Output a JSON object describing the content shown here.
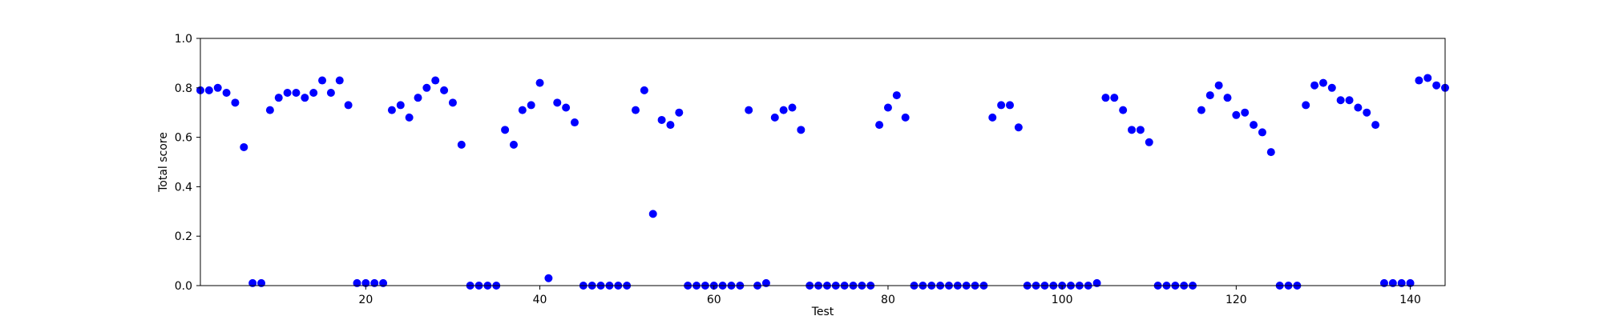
{
  "chart_data": {
    "type": "scatter",
    "title": "",
    "xlabel": "Test",
    "ylabel": "Total score",
    "xlim": [
      1,
      144
    ],
    "ylim": [
      0.0,
      1.0
    ],
    "xticks": [
      20,
      40,
      60,
      80,
      100,
      120,
      140
    ],
    "yticks": [
      0.0,
      0.2,
      0.4,
      0.6,
      0.8,
      1.0
    ],
    "xtick_labels": [
      "20",
      "40",
      "60",
      "80",
      "100",
      "120",
      "140"
    ],
    "ytick_labels": [
      "0.0",
      "0.2",
      "0.4",
      "0.6",
      "0.8",
      "1.0"
    ],
    "grid": false,
    "legend": "none",
    "marker_color": "#0000ff",
    "x": [
      1,
      2,
      3,
      4,
      5,
      6,
      7,
      8,
      9,
      10,
      11,
      12,
      13,
      14,
      15,
      16,
      17,
      18,
      19,
      20,
      21,
      22,
      23,
      24,
      25,
      26,
      27,
      28,
      29,
      30,
      31,
      32,
      33,
      34,
      35,
      36,
      37,
      38,
      39,
      40,
      41,
      42,
      43,
      44,
      45,
      46,
      47,
      48,
      49,
      50,
      51,
      52,
      53,
      54,
      55,
      56,
      57,
      58,
      59,
      60,
      61,
      62,
      63,
      64,
      65,
      66,
      67,
      68,
      69,
      70,
      71,
      72,
      73,
      74,
      75,
      76,
      77,
      78,
      79,
      80,
      81,
      82,
      83,
      84,
      85,
      86,
      87,
      88,
      89,
      90,
      91,
      92,
      93,
      94,
      95,
      96,
      97,
      98,
      99,
      100,
      101,
      102,
      103,
      104,
      105,
      106,
      107,
      108,
      109,
      110,
      111,
      112,
      113,
      114,
      115,
      116,
      117,
      118,
      119,
      120,
      121,
      122,
      123,
      124,
      125,
      126,
      127,
      128,
      129,
      130,
      131,
      132,
      133,
      134,
      135,
      136,
      137,
      138,
      139,
      140,
      141,
      142,
      143,
      144
    ],
    "y": [
      0.79,
      0.79,
      0.8,
      0.78,
      0.74,
      0.56,
      0.01,
      0.01,
      0.71,
      0.76,
      0.78,
      0.78,
      0.76,
      0.78,
      0.83,
      0.78,
      0.83,
      0.73,
      0.01,
      0.01,
      0.01,
      0.01,
      0.71,
      0.73,
      0.68,
      0.76,
      0.8,
      0.83,
      0.79,
      0.74,
      0.57,
      0.0,
      0.0,
      0.0,
      0.0,
      0.63,
      0.57,
      0.71,
      0.73,
      0.82,
      0.03,
      0.74,
      0.72,
      0.66,
      0.0,
      0.0,
      0.0,
      0.0,
      0.0,
      0.0,
      0.71,
      0.79,
      0.29,
      0.67,
      0.65,
      0.7,
      0.0,
      0.0,
      0.0,
      0.0,
      0.0,
      0.0,
      0.0,
      0.71,
      0.0,
      0.01,
      0.68,
      0.71,
      0.72,
      0.63,
      0.0,
      0.0,
      0.0,
      0.0,
      0.0,
      0.0,
      0.0,
      0.0,
      0.65,
      0.72,
      0.77,
      0.68,
      0.0,
      0.0,
      0.0,
      0.0,
      0.0,
      0.0,
      0.0,
      0.0,
      0.0,
      0.68,
      0.73,
      0.73,
      0.64,
      0.0,
      0.0,
      0.0,
      0.0,
      0.0,
      0.0,
      0.0,
      0.0,
      0.01,
      0.76,
      0.76,
      0.71,
      0.63,
      0.63,
      0.58,
      0.0,
      0.0,
      0.0,
      0.0,
      0.0,
      0.71,
      0.77,
      0.81,
      0.76,
      0.69,
      0.7,
      0.65,
      0.62,
      0.54,
      0.0,
      0.0,
      0.0,
      0.73,
      0.81,
      0.82,
      0.8,
      0.75,
      0.75,
      0.72,
      0.7,
      0.65,
      0.01,
      0.01,
      0.01,
      0.01,
      0.83,
      0.84,
      0.81,
      0.8
    ]
  }
}
